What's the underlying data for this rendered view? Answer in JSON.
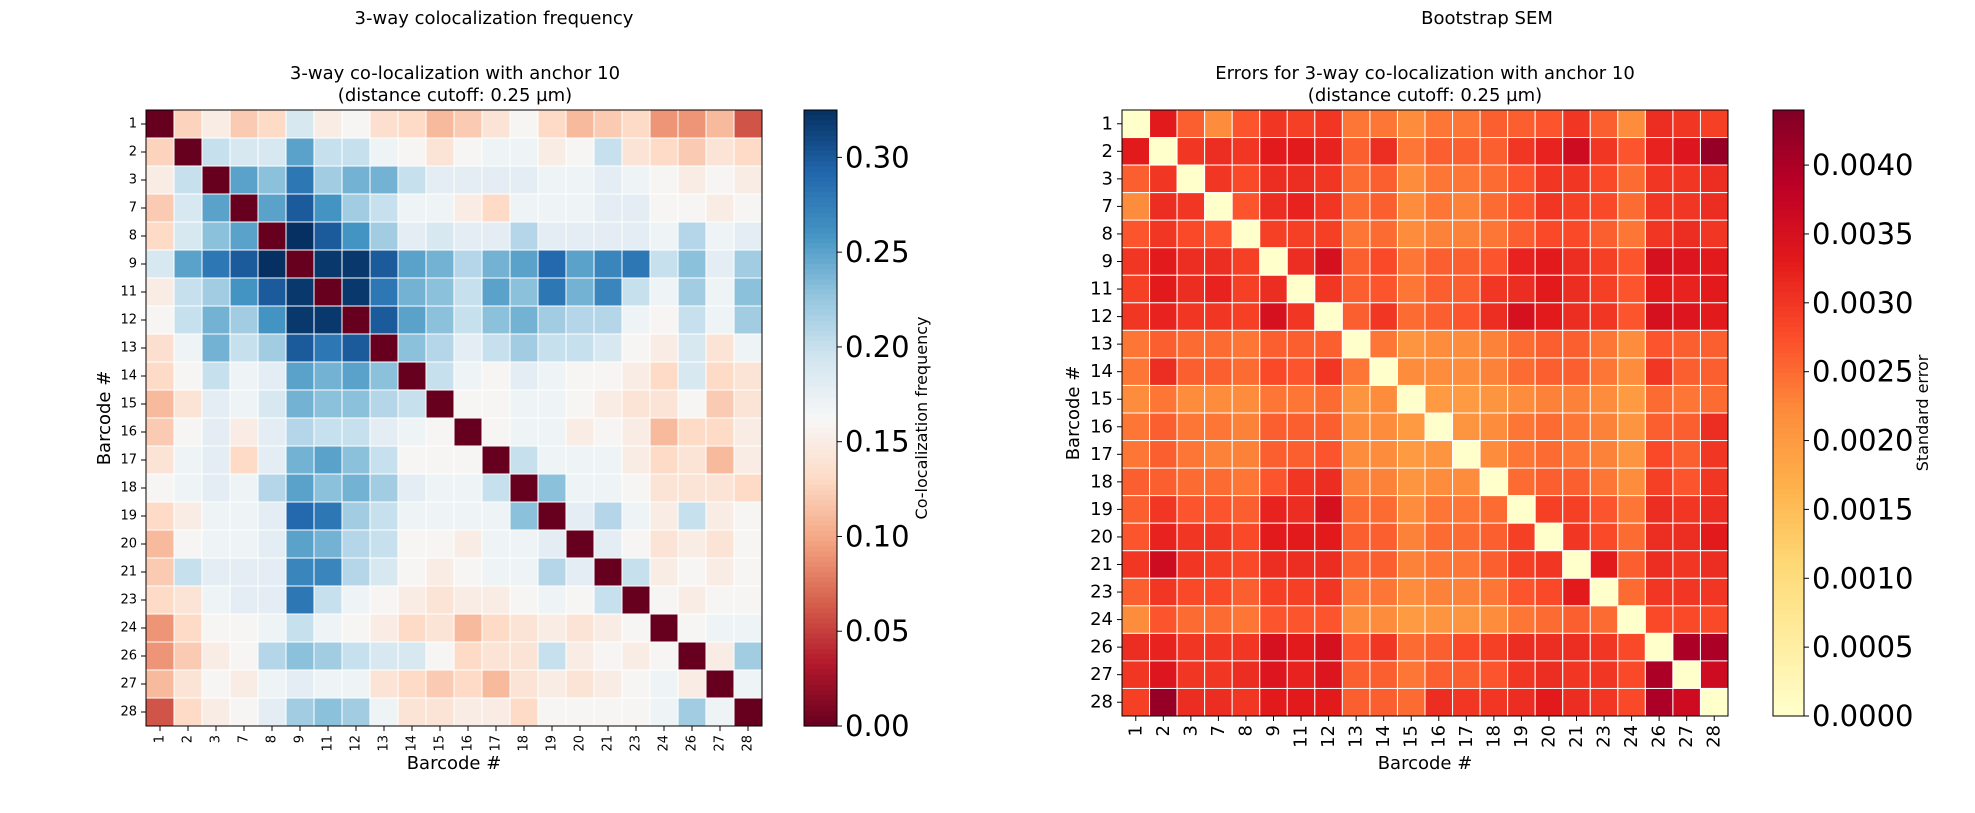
{
  "chart_data": [
    {
      "type": "heatmap",
      "suptitle": "3-way colocalization frequency",
      "title_line1": "3-way co-localization with anchor 10",
      "title_line2": "(distance cutoff: 0.25 µm)",
      "xlabel": "Barcode #",
      "ylabel": "Barcode #",
      "colorbar_label": "Co-localization frequency",
      "colormap": "RdBu",
      "vmin": 0.0,
      "vmax": 0.325,
      "colorbar_ticks": [
        "0.00",
        "0.05",
        "0.10",
        "0.15",
        "0.20",
        "0.25",
        "0.30"
      ],
      "labels": [
        "1",
        "2",
        "3",
        "7",
        "8",
        "9",
        "11",
        "12",
        "13",
        "14",
        "15",
        "16",
        "17",
        "18",
        "19",
        "20",
        "21",
        "23",
        "24",
        "26",
        "27",
        "28"
      ],
      "values": [
        [
          0.0,
          0.125,
          0.15,
          0.12,
          0.13,
          0.19,
          0.15,
          0.16,
          0.135,
          0.13,
          0.11,
          0.12,
          0.14,
          0.16,
          0.13,
          0.11,
          0.12,
          0.13,
          0.09,
          0.09,
          0.11,
          0.06
        ],
        [
          0.125,
          0.0,
          0.2,
          0.19,
          0.19,
          0.25,
          0.2,
          0.2,
          0.17,
          0.16,
          0.14,
          0.16,
          0.17,
          0.17,
          0.15,
          0.16,
          0.2,
          0.14,
          0.13,
          0.12,
          0.14,
          0.13
        ],
        [
          0.15,
          0.2,
          0.0,
          0.25,
          0.23,
          0.28,
          0.22,
          0.24,
          0.24,
          0.2,
          0.18,
          0.18,
          0.18,
          0.18,
          0.17,
          0.17,
          0.18,
          0.17,
          0.16,
          0.15,
          0.16,
          0.15
        ],
        [
          0.12,
          0.19,
          0.25,
          0.0,
          0.25,
          0.3,
          0.26,
          0.22,
          0.2,
          0.17,
          0.17,
          0.15,
          0.13,
          0.17,
          0.17,
          0.17,
          0.18,
          0.18,
          0.16,
          0.16,
          0.15,
          0.16
        ],
        [
          0.13,
          0.19,
          0.23,
          0.25,
          0.0,
          0.325,
          0.3,
          0.26,
          0.22,
          0.18,
          0.19,
          0.18,
          0.18,
          0.21,
          0.18,
          0.18,
          0.18,
          0.18,
          0.17,
          0.21,
          0.17,
          0.18
        ],
        [
          0.19,
          0.25,
          0.28,
          0.3,
          0.325,
          0.0,
          0.32,
          0.32,
          0.3,
          0.25,
          0.24,
          0.21,
          0.24,
          0.25,
          0.29,
          0.25,
          0.27,
          0.28,
          0.2,
          0.23,
          0.18,
          0.22
        ],
        [
          0.15,
          0.2,
          0.22,
          0.26,
          0.3,
          0.32,
          0.0,
          0.32,
          0.28,
          0.24,
          0.23,
          0.2,
          0.25,
          0.23,
          0.28,
          0.24,
          0.27,
          0.2,
          0.17,
          0.22,
          0.17,
          0.23
        ],
        [
          0.16,
          0.2,
          0.24,
          0.22,
          0.26,
          0.32,
          0.32,
          0.0,
          0.3,
          0.25,
          0.23,
          0.2,
          0.23,
          0.24,
          0.22,
          0.21,
          0.21,
          0.17,
          0.16,
          0.2,
          0.17,
          0.22
        ],
        [
          0.135,
          0.17,
          0.24,
          0.2,
          0.22,
          0.3,
          0.28,
          0.3,
          0.0,
          0.23,
          0.21,
          0.18,
          0.2,
          0.22,
          0.2,
          0.2,
          0.19,
          0.16,
          0.15,
          0.19,
          0.14,
          0.17
        ],
        [
          0.13,
          0.16,
          0.2,
          0.17,
          0.18,
          0.25,
          0.24,
          0.25,
          0.23,
          0.0,
          0.2,
          0.17,
          0.16,
          0.18,
          0.17,
          0.16,
          0.16,
          0.15,
          0.13,
          0.19,
          0.13,
          0.14
        ],
        [
          0.11,
          0.14,
          0.18,
          0.17,
          0.19,
          0.24,
          0.23,
          0.23,
          0.21,
          0.2,
          0.0,
          0.16,
          0.16,
          0.17,
          0.17,
          0.16,
          0.15,
          0.14,
          0.14,
          0.16,
          0.12,
          0.14
        ],
        [
          0.12,
          0.16,
          0.18,
          0.15,
          0.18,
          0.21,
          0.2,
          0.2,
          0.18,
          0.17,
          0.16,
          0.0,
          0.16,
          0.17,
          0.17,
          0.15,
          0.16,
          0.15,
          0.11,
          0.13,
          0.13,
          0.15
        ],
        [
          0.14,
          0.17,
          0.18,
          0.13,
          0.18,
          0.24,
          0.25,
          0.23,
          0.2,
          0.16,
          0.16,
          0.16,
          0.0,
          0.2,
          0.17,
          0.17,
          0.17,
          0.15,
          0.13,
          0.14,
          0.11,
          0.15
        ],
        [
          0.16,
          0.17,
          0.18,
          0.17,
          0.21,
          0.25,
          0.23,
          0.24,
          0.22,
          0.18,
          0.17,
          0.17,
          0.2,
          0.0,
          0.23,
          0.17,
          0.17,
          0.16,
          0.14,
          0.14,
          0.14,
          0.13
        ],
        [
          0.13,
          0.15,
          0.17,
          0.17,
          0.18,
          0.29,
          0.28,
          0.22,
          0.2,
          0.17,
          0.17,
          0.17,
          0.17,
          0.23,
          0.0,
          0.18,
          0.21,
          0.17,
          0.15,
          0.2,
          0.15,
          0.16
        ],
        [
          0.11,
          0.16,
          0.17,
          0.17,
          0.18,
          0.25,
          0.24,
          0.21,
          0.2,
          0.16,
          0.16,
          0.15,
          0.17,
          0.17,
          0.18,
          0.0,
          0.18,
          0.16,
          0.14,
          0.15,
          0.14,
          0.16
        ],
        [
          0.12,
          0.2,
          0.18,
          0.18,
          0.18,
          0.27,
          0.27,
          0.21,
          0.19,
          0.16,
          0.15,
          0.16,
          0.17,
          0.17,
          0.21,
          0.18,
          0.0,
          0.2,
          0.15,
          0.16,
          0.15,
          0.16
        ],
        [
          0.13,
          0.14,
          0.17,
          0.18,
          0.18,
          0.28,
          0.2,
          0.17,
          0.16,
          0.15,
          0.14,
          0.15,
          0.15,
          0.16,
          0.17,
          0.16,
          0.2,
          0.0,
          0.16,
          0.15,
          0.16,
          0.16
        ],
        [
          0.09,
          0.13,
          0.16,
          0.16,
          0.17,
          0.2,
          0.17,
          0.16,
          0.15,
          0.13,
          0.14,
          0.11,
          0.13,
          0.14,
          0.15,
          0.14,
          0.15,
          0.16,
          0.0,
          0.16,
          0.17,
          0.17
        ],
        [
          0.09,
          0.12,
          0.15,
          0.16,
          0.21,
          0.23,
          0.22,
          0.2,
          0.19,
          0.19,
          0.16,
          0.13,
          0.14,
          0.14,
          0.2,
          0.15,
          0.16,
          0.15,
          0.16,
          0.0,
          0.15,
          0.22
        ],
        [
          0.11,
          0.14,
          0.16,
          0.15,
          0.17,
          0.18,
          0.17,
          0.17,
          0.14,
          0.13,
          0.12,
          0.13,
          0.11,
          0.14,
          0.15,
          0.14,
          0.15,
          0.16,
          0.17,
          0.15,
          0.0,
          0.17
        ],
        [
          0.06,
          0.13,
          0.15,
          0.16,
          0.18,
          0.22,
          0.23,
          0.22,
          0.17,
          0.14,
          0.14,
          0.15,
          0.15,
          0.13,
          0.16,
          0.16,
          0.16,
          0.16,
          0.17,
          0.22,
          0.17,
          0.0
        ]
      ]
    },
    {
      "type": "heatmap",
      "suptitle": "Bootstrap SEM",
      "title_line1": "Errors for 3-way co-localization with anchor 10",
      "title_line2": "(distance cutoff: 0.25 µm)",
      "xlabel": "Barcode #",
      "ylabel": "Barcode #",
      "colorbar_label": "Standard error",
      "colormap": "YlOrRd",
      "vmin": 0.0,
      "vmax": 0.0044,
      "colorbar_ticks": [
        "0.0000",
        "0.0005",
        "0.0010",
        "0.0015",
        "0.0020",
        "0.0025",
        "0.0030",
        "0.0035",
        "0.0040"
      ],
      "labels": [
        "1",
        "2",
        "3",
        "7",
        "8",
        "9",
        "11",
        "12",
        "13",
        "14",
        "15",
        "16",
        "17",
        "18",
        "19",
        "20",
        "21",
        "23",
        "24",
        "26",
        "27",
        "28"
      ],
      "values": [
        [
          0.0,
          0.0033,
          0.0026,
          0.0022,
          0.0027,
          0.003,
          0.0029,
          0.003,
          0.0024,
          0.0024,
          0.0022,
          0.0024,
          0.0024,
          0.0026,
          0.0026,
          0.0027,
          0.003,
          0.0026,
          0.0022,
          0.0031,
          0.003,
          0.0029
        ],
        [
          0.0033,
          0.0,
          0.003,
          0.0031,
          0.003,
          0.0033,
          0.0033,
          0.0032,
          0.0026,
          0.0031,
          0.0024,
          0.0026,
          0.0026,
          0.0026,
          0.003,
          0.0032,
          0.0036,
          0.003,
          0.0027,
          0.0032,
          0.0034,
          0.0042
        ],
        [
          0.0026,
          0.003,
          0.0,
          0.003,
          0.0028,
          0.0031,
          0.0031,
          0.003,
          0.0025,
          0.0026,
          0.0022,
          0.0024,
          0.0024,
          0.0025,
          0.0027,
          0.003,
          0.003,
          0.0028,
          0.0025,
          0.003,
          0.003,
          0.0031
        ],
        [
          0.0022,
          0.0031,
          0.003,
          0.0,
          0.0027,
          0.0031,
          0.0032,
          0.003,
          0.0025,
          0.0026,
          0.0022,
          0.0024,
          0.0023,
          0.0025,
          0.0027,
          0.003,
          0.0029,
          0.0028,
          0.0025,
          0.003,
          0.003,
          0.0031
        ],
        [
          0.0027,
          0.003,
          0.0028,
          0.0027,
          0.0,
          0.0029,
          0.0029,
          0.0029,
          0.0024,
          0.0025,
          0.0022,
          0.0023,
          0.0023,
          0.0024,
          0.0026,
          0.0028,
          0.0028,
          0.0026,
          0.0024,
          0.003,
          0.0031,
          0.003
        ],
        [
          0.003,
          0.0033,
          0.0031,
          0.0031,
          0.0029,
          0.0,
          0.0031,
          0.0035,
          0.0026,
          0.0028,
          0.0024,
          0.0026,
          0.0026,
          0.0027,
          0.0032,
          0.0033,
          0.0031,
          0.0029,
          0.0027,
          0.0035,
          0.0034,
          0.0033
        ],
        [
          0.0029,
          0.0033,
          0.0031,
          0.0032,
          0.0029,
          0.0031,
          0.0,
          0.003,
          0.0026,
          0.0027,
          0.0024,
          0.0026,
          0.0026,
          0.003,
          0.0031,
          0.0033,
          0.0031,
          0.0029,
          0.0027,
          0.0033,
          0.0032,
          0.0033
        ],
        [
          0.003,
          0.0032,
          0.003,
          0.003,
          0.0029,
          0.0035,
          0.003,
          0.0,
          0.0026,
          0.003,
          0.0025,
          0.0026,
          0.0027,
          0.0031,
          0.0035,
          0.0033,
          0.0031,
          0.003,
          0.0027,
          0.0035,
          0.0034,
          0.0033
        ],
        [
          0.0024,
          0.0026,
          0.0025,
          0.0025,
          0.0024,
          0.0026,
          0.0026,
          0.0026,
          0.0,
          0.0024,
          0.0021,
          0.0022,
          0.0022,
          0.0023,
          0.0025,
          0.0026,
          0.0026,
          0.0024,
          0.0022,
          0.0027,
          0.0026,
          0.0026
        ],
        [
          0.0024,
          0.0031,
          0.0026,
          0.0026,
          0.0025,
          0.0028,
          0.0027,
          0.003,
          0.0024,
          0.0,
          0.0022,
          0.0022,
          0.0022,
          0.0023,
          0.0025,
          0.0026,
          0.0026,
          0.0024,
          0.0022,
          0.003,
          0.0026,
          0.0026
        ],
        [
          0.0022,
          0.0024,
          0.0022,
          0.0022,
          0.0022,
          0.0024,
          0.0024,
          0.0025,
          0.0021,
          0.0022,
          0.0,
          0.002,
          0.002,
          0.0021,
          0.0022,
          0.0023,
          0.0023,
          0.0022,
          0.002,
          0.0025,
          0.0024,
          0.0025
        ],
        [
          0.0024,
          0.0026,
          0.0024,
          0.0024,
          0.0023,
          0.0026,
          0.0026,
          0.0026,
          0.0022,
          0.0022,
          0.002,
          0.0,
          0.0021,
          0.0022,
          0.0024,
          0.0025,
          0.0024,
          0.0023,
          0.0021,
          0.0026,
          0.0026,
          0.0031
        ],
        [
          0.0024,
          0.0026,
          0.0024,
          0.0023,
          0.0023,
          0.0026,
          0.0026,
          0.0027,
          0.0022,
          0.0022,
          0.002,
          0.0021,
          0.0,
          0.0022,
          0.0024,
          0.0025,
          0.0024,
          0.0023,
          0.0021,
          0.0028,
          0.0026,
          0.003
        ],
        [
          0.0026,
          0.0026,
          0.0025,
          0.0025,
          0.0024,
          0.0027,
          0.003,
          0.0031,
          0.0023,
          0.0023,
          0.0021,
          0.0022,
          0.0022,
          0.0,
          0.0025,
          0.0026,
          0.0026,
          0.0024,
          0.0022,
          0.0029,
          0.0027,
          0.003
        ],
        [
          0.0026,
          0.003,
          0.0027,
          0.0027,
          0.0026,
          0.0032,
          0.0031,
          0.0035,
          0.0025,
          0.0025,
          0.0022,
          0.0024,
          0.0024,
          0.0025,
          0.0,
          0.0029,
          0.0029,
          0.0027,
          0.0024,
          0.0031,
          0.003,
          0.0031
        ],
        [
          0.0027,
          0.0032,
          0.003,
          0.003,
          0.0028,
          0.0033,
          0.0033,
          0.0033,
          0.0026,
          0.0026,
          0.0023,
          0.0025,
          0.0025,
          0.0026,
          0.0029,
          0.0,
          0.003,
          0.0028,
          0.0025,
          0.0031,
          0.0031,
          0.0033
        ],
        [
          0.003,
          0.0036,
          0.003,
          0.0029,
          0.0028,
          0.0031,
          0.0031,
          0.0031,
          0.0026,
          0.0026,
          0.0023,
          0.0024,
          0.0024,
          0.0026,
          0.0029,
          0.003,
          0.0,
          0.0033,
          0.0026,
          0.0031,
          0.003,
          0.0031
        ],
        [
          0.0026,
          0.003,
          0.0028,
          0.0028,
          0.0026,
          0.0029,
          0.0029,
          0.003,
          0.0024,
          0.0024,
          0.0022,
          0.0023,
          0.0023,
          0.0024,
          0.0027,
          0.0028,
          0.0033,
          0.0,
          0.0025,
          0.003,
          0.003,
          0.003
        ],
        [
          0.0022,
          0.0027,
          0.0025,
          0.0025,
          0.0024,
          0.0027,
          0.0027,
          0.0027,
          0.0022,
          0.0022,
          0.002,
          0.0021,
          0.0021,
          0.0022,
          0.0024,
          0.0025,
          0.0026,
          0.0025,
          0.0,
          0.0028,
          0.0028,
          0.0028
        ],
        [
          0.0031,
          0.0032,
          0.003,
          0.003,
          0.003,
          0.0035,
          0.0033,
          0.0035,
          0.0027,
          0.003,
          0.0025,
          0.0026,
          0.0028,
          0.0029,
          0.0031,
          0.0031,
          0.0031,
          0.003,
          0.0028,
          0.0,
          0.004,
          0.004
        ],
        [
          0.003,
          0.0034,
          0.003,
          0.003,
          0.0031,
          0.0034,
          0.0032,
          0.0034,
          0.0026,
          0.0026,
          0.0024,
          0.0026,
          0.0026,
          0.0027,
          0.003,
          0.0031,
          0.003,
          0.003,
          0.0028,
          0.004,
          0.0,
          0.0036
        ],
        [
          0.0029,
          0.0042,
          0.0031,
          0.0031,
          0.003,
          0.0033,
          0.0033,
          0.0033,
          0.0026,
          0.0026,
          0.0025,
          0.0031,
          0.003,
          0.003,
          0.0031,
          0.0033,
          0.0031,
          0.003,
          0.0028,
          0.004,
          0.0036,
          0.0
        ]
      ]
    }
  ]
}
